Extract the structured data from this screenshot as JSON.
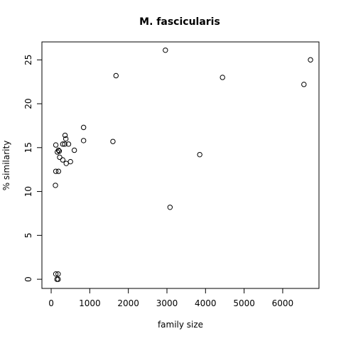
{
  "chart_data": {
    "type": "scatter",
    "title": "M. fascicularis",
    "xlabel": "family size",
    "ylabel": "% similarity",
    "xlim": [
      -100,
      6800
    ],
    "ylim": [
      0,
      26
    ],
    "xticks": [
      0,
      1000,
      2000,
      3000,
      4000,
      5000,
      6000
    ],
    "yticks": [
      0,
      5,
      10,
      15,
      20,
      25
    ],
    "grid": false,
    "points": [
      {
        "x": 120,
        "y": 15.3
      },
      {
        "x": 160,
        "y": 14.5
      },
      {
        "x": 190,
        "y": 14.7
      },
      {
        "x": 210,
        "y": 14.6
      },
      {
        "x": 220,
        "y": 13.9
      },
      {
        "x": 300,
        "y": 13.6
      },
      {
        "x": 300,
        "y": 15.4
      },
      {
        "x": 350,
        "y": 15.4
      },
      {
        "x": 360,
        "y": 16.4
      },
      {
        "x": 380,
        "y": 16.0
      },
      {
        "x": 390,
        "y": 13.2
      },
      {
        "x": 450,
        "y": 15.4
      },
      {
        "x": 500,
        "y": 13.4
      },
      {
        "x": 600,
        "y": 14.7
      },
      {
        "x": 840,
        "y": 17.3
      },
      {
        "x": 840,
        "y": 15.8
      },
      {
        "x": 120,
        "y": 12.3
      },
      {
        "x": 190,
        "y": 12.3
      },
      {
        "x": 110,
        "y": 10.7
      },
      {
        "x": 120,
        "y": 0.6
      },
      {
        "x": 180,
        "y": 0.6
      },
      {
        "x": 150,
        "y": 0.0
      },
      {
        "x": 180,
        "y": 0.0
      },
      {
        "x": 1600,
        "y": 15.7
      },
      {
        "x": 1680,
        "y": 23.2
      },
      {
        "x": 2960,
        "y": 26.1
      },
      {
        "x": 3080,
        "y": 8.2
      },
      {
        "x": 3850,
        "y": 14.2
      },
      {
        "x": 4440,
        "y": 23.0
      },
      {
        "x": 6550,
        "y": 22.2
      },
      {
        "x": 6720,
        "y": 25.0
      }
    ]
  }
}
